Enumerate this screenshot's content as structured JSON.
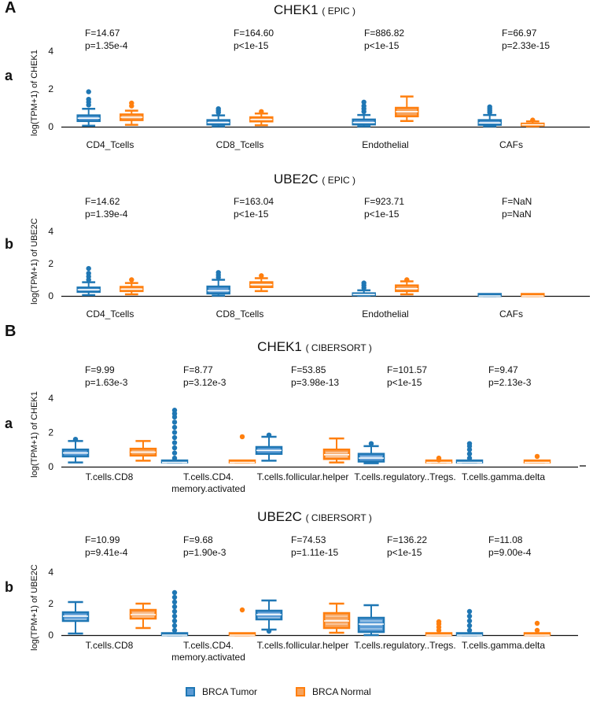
{
  "figure": {
    "section_labels": [
      "A",
      "B"
    ],
    "legend": [
      {
        "label": "BRCA Tumor",
        "color": "#1f77b4",
        "fill": "#5b9bd5"
      },
      {
        "label": "BRCA Normal",
        "color": "#ff7f0e",
        "fill": "#f7a35c"
      }
    ]
  },
  "chart_data": [
    {
      "type": "box",
      "panel": "a",
      "title": "CHEK1",
      "title_method": "( EPIC )",
      "ylabel": "log(TPM+1) of CHEK1",
      "ylim": [
        0,
        4
      ],
      "yticks": [
        0,
        2,
        4
      ],
      "categories": [
        "CD4_Tcells",
        "CD8_Tcells",
        "Endothelial",
        "CAFs"
      ],
      "stats": [
        {
          "F": "F=14.67",
          "p": "p=1.35e-4"
        },
        {
          "F": "F=164.60",
          "p": "p<1e-15"
        },
        {
          "F": "F=886.82",
          "p": "p<1e-15"
        },
        {
          "F": "F=66.97",
          "p": "p=2.33e-15"
        }
      ],
      "series": [
        {
          "name": "BRCA Tumor",
          "boxes": [
            {
              "min": 0.05,
              "q1": 0.3,
              "median": 0.45,
              "q3": 0.6,
              "max": 0.95,
              "outliers": [
                1.15,
                1.3,
                1.45,
                1.85
              ]
            },
            {
              "min": 0.02,
              "q1": 0.12,
              "median": 0.22,
              "q3": 0.35,
              "max": 0.6,
              "outliers": [
                0.75,
                0.85,
                0.95
              ]
            },
            {
              "min": 0.02,
              "q1": 0.12,
              "median": 0.22,
              "q3": 0.38,
              "max": 0.62,
              "outliers": [
                0.8,
                0.95,
                1.1,
                1.3
              ]
            },
            {
              "min": 0.02,
              "q1": 0.1,
              "median": 0.2,
              "q3": 0.35,
              "max": 0.62,
              "outliers": [
                0.75,
                0.85,
                0.95,
                1.05
              ]
            }
          ]
        },
        {
          "name": "BRCA Normal",
          "boxes": [
            {
              "min": 0.1,
              "q1": 0.35,
              "median": 0.5,
              "q3": 0.65,
              "max": 0.85,
              "outliers": [
                1.1,
                1.25
              ]
            },
            {
              "min": 0.08,
              "q1": 0.28,
              "median": 0.38,
              "q3": 0.5,
              "max": 0.7,
              "outliers": [
                0.8
              ]
            },
            {
              "min": 0.3,
              "q1": 0.55,
              "median": 0.8,
              "q3": 1.0,
              "max": 1.6,
              "outliers": []
            },
            {
              "min": 0.02,
              "q1": 0.06,
              "median": 0.1,
              "q3": 0.16,
              "max": 0.28,
              "outliers": [
                0.35
              ]
            }
          ]
        }
      ]
    },
    {
      "type": "box",
      "panel": "b",
      "title": "UBE2C",
      "title_method": "( EPIC )",
      "ylabel": "log(TPM+1) of UBE2C",
      "ylim": [
        0,
        4
      ],
      "yticks": [
        0,
        2,
        4
      ],
      "categories": [
        "CD4_Tcells",
        "CD8_Tcells",
        "Endothelial",
        "CAFs"
      ],
      "stats": [
        {
          "F": "F=14.62",
          "p": "p=1.39e-4"
        },
        {
          "F": "F=163.04",
          "p": "p<1e-15"
        },
        {
          "F": "F=923.71",
          "p": "p<1e-15"
        },
        {
          "F": "F=NaN",
          "p": "p=NaN"
        }
      ],
      "series": [
        {
          "name": "BRCA Tumor",
          "boxes": [
            {
              "min": 0.05,
              "q1": 0.25,
              "median": 0.38,
              "q3": 0.52,
              "max": 0.85,
              "outliers": [
                1.0,
                1.2,
                1.4,
                1.7
              ]
            },
            {
              "min": 0.02,
              "q1": 0.15,
              "median": 0.32,
              "q3": 0.58,
              "max": 1.0,
              "outliers": [
                1.15,
                1.3,
                1.45
              ]
            },
            {
              "min": 0.02,
              "q1": 0.04,
              "median": 0.08,
              "q3": 0.16,
              "max": 0.35,
              "outliers": [
                0.5,
                0.65,
                0.8
              ]
            },
            {
              "min": 0.0,
              "q1": 0.0,
              "median": 0.0,
              "q3": 0.02,
              "max": 0.03,
              "outliers": []
            }
          ]
        },
        {
          "name": "BRCA Normal",
          "boxes": [
            {
              "min": 0.1,
              "q1": 0.3,
              "median": 0.42,
              "q3": 0.56,
              "max": 0.8,
              "outliers": [
                1.0
              ]
            },
            {
              "min": 0.3,
              "q1": 0.55,
              "median": 0.7,
              "q3": 0.85,
              "max": 1.1,
              "outliers": [
                1.25
              ]
            },
            {
              "min": 0.1,
              "q1": 0.3,
              "median": 0.45,
              "q3": 0.65,
              "max": 0.9,
              "outliers": [
                1.0
              ]
            },
            {
              "min": 0.0,
              "q1": 0.0,
              "median": 0.0,
              "q3": 0.02,
              "max": 0.03,
              "outliers": []
            }
          ]
        }
      ]
    },
    {
      "type": "box",
      "panel": "a",
      "title": "CHEK1",
      "title_method": "( CIBERSORT )",
      "ylabel": "log(TPM+1) of CHEK1",
      "ylim": [
        0,
        4
      ],
      "yticks": [
        0,
        2,
        4
      ],
      "categories": [
        "T.cells.CD8",
        "T.cells.CD4.\nmemory.activated",
        "T.cells.follicular.helper",
        "T.cells.regulatory..Tregs.",
        "T.cells.gamma.delta"
      ],
      "stats": [
        {
          "F": "F=9.99",
          "p": "p=1.63e-3"
        },
        {
          "F": "F=8.77",
          "p": "p=3.12e-3"
        },
        {
          "F": "F=53.85",
          "p": "p=3.98e-13"
        },
        {
          "F": "F=101.57",
          "p": "p<1e-15"
        },
        {
          "F": "F=9.47",
          "p": "p=2.13e-3"
        }
      ],
      "series": [
        {
          "name": "BRCA Tumor",
          "boxes": [
            {
              "min": 0.25,
              "q1": 0.6,
              "median": 0.8,
              "q3": 1.0,
              "max": 1.5,
              "outliers": [
                1.6
              ]
            },
            {
              "min": 0.25,
              "q1": 0.25,
              "median": 0.25,
              "q3": 0.25,
              "max": 0.25,
              "outliers": [
                0.5,
                0.8,
                1.1,
                1.4,
                1.7,
                2.0,
                2.3,
                2.6,
                2.9,
                3.1,
                3.3
              ]
            },
            {
              "min": 0.35,
              "q1": 0.75,
              "median": 0.95,
              "q3": 1.15,
              "max": 1.75,
              "outliers": [
                1.85
              ]
            },
            {
              "min": 0.2,
              "q1": 0.3,
              "median": 0.5,
              "q3": 0.75,
              "max": 1.2,
              "outliers": [
                1.35
              ]
            },
            {
              "min": 0.25,
              "q1": 0.25,
              "median": 0.25,
              "q3": 0.25,
              "max": 0.25,
              "outliers": [
                0.5,
                0.75,
                1.0,
                1.2,
                1.35
              ]
            }
          ]
        },
        {
          "name": "BRCA Normal",
          "boxes": [
            {
              "min": 0.35,
              "q1": 0.65,
              "median": 0.85,
              "q3": 1.05,
              "max": 1.5,
              "outliers": []
            },
            {
              "min": 0.25,
              "q1": 0.25,
              "median": 0.25,
              "q3": 0.25,
              "max": 0.25,
              "outliers": [
                1.75
              ]
            },
            {
              "min": 0.25,
              "q1": 0.45,
              "median": 0.7,
              "q3": 1.0,
              "max": 1.65,
              "outliers": []
            },
            {
              "min": 0.25,
              "q1": 0.25,
              "median": 0.25,
              "q3": 0.25,
              "max": 0.25,
              "outliers": [
                0.4,
                0.5
              ]
            },
            {
              "min": 0.25,
              "q1": 0.25,
              "median": 0.25,
              "q3": 0.25,
              "max": 0.25,
              "outliers": [
                0.6
              ]
            }
          ]
        }
      ]
    },
    {
      "type": "box",
      "panel": "b",
      "title": "UBE2C",
      "title_method": "( CIBERSORT )",
      "ylabel": "log(TPM+1) of UBE2C",
      "ylim": [
        0,
        4
      ],
      "yticks": [
        0,
        2,
        4
      ],
      "categories": [
        "T.cells.CD8",
        "T.cells.CD4.\nmemory.activated",
        "T.cells.follicular.helper",
        "T.cells.regulatory..Tregs.",
        "T.cells.gamma.delta"
      ],
      "stats": [
        {
          "F": "F=10.99",
          "p": "p=9.41e-4"
        },
        {
          "F": "F=9.68",
          "p": "p=1.90e-3"
        },
        {
          "F": "F=74.53",
          "p": "p=1.11e-15"
        },
        {
          "F": "F=136.22",
          "p": "p<1e-15"
        },
        {
          "F": "F=11.08",
          "p": "p=9.00e-4"
        }
      ],
      "series": [
        {
          "name": "BRCA Tumor",
          "boxes": [
            {
              "min": 0.1,
              "q1": 0.9,
              "median": 1.2,
              "q3": 1.45,
              "max": 2.1,
              "outliers": []
            },
            {
              "min": 0.0,
              "q1": 0.0,
              "median": 0.0,
              "q3": 0.0,
              "max": 0.0,
              "outliers": [
                0.3,
                0.6,
                0.9,
                1.2,
                1.5,
                1.8,
                2.1,
                2.4,
                2.7
              ]
            },
            {
              "min": 0.35,
              "q1": 1.0,
              "median": 1.3,
              "q3": 1.55,
              "max": 2.2,
              "outliers": [
                0.25
              ]
            },
            {
              "min": 0.0,
              "q1": 0.2,
              "median": 0.7,
              "q3": 1.1,
              "max": 1.9,
              "outliers": []
            },
            {
              "min": 0.0,
              "q1": 0.0,
              "median": 0.0,
              "q3": 0.0,
              "max": 0.0,
              "outliers": [
                0.3,
                0.6,
                0.9,
                1.2,
                1.5
              ]
            }
          ]
        },
        {
          "name": "BRCA Normal",
          "boxes": [
            {
              "min": 0.45,
              "q1": 1.05,
              "median": 1.3,
              "q3": 1.6,
              "max": 2.0,
              "outliers": []
            },
            {
              "min": 0.0,
              "q1": 0.0,
              "median": 0.0,
              "q3": 0.0,
              "max": 0.0,
              "outliers": [
                1.6
              ]
            },
            {
              "min": 0.15,
              "q1": 0.45,
              "median": 0.9,
              "q3": 1.4,
              "max": 2.0,
              "outliers": []
            },
            {
              "min": 0.0,
              "q1": 0.0,
              "median": 0.0,
              "q3": 0.05,
              "max": 0.1,
              "outliers": [
                0.3,
                0.5,
                0.7,
                0.85
              ]
            },
            {
              "min": 0.0,
              "q1": 0.0,
              "median": 0.0,
              "q3": 0.0,
              "max": 0.0,
              "outliers": [
                0.3,
                0.75
              ]
            }
          ]
        }
      ]
    }
  ]
}
